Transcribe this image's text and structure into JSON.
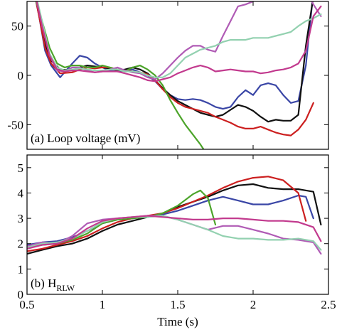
{
  "chart_data": [
    {
      "type": "line",
      "panel": "a",
      "label_prefix": "(a) Loop voltage (mV)",
      "xlim": [
        0.5,
        2.5
      ],
      "ylim": [
        -75,
        75
      ],
      "yticks": [
        -50,
        0,
        50
      ],
      "grid": false,
      "series": [
        {
          "color": "#3a46a6",
          "x": [
            0.5,
            0.58,
            0.62,
            0.66,
            0.72,
            0.8,
            0.85,
            0.9,
            0.95,
            1.0,
            1.05,
            1.1,
            1.15,
            1.2,
            1.25,
            1.3,
            1.35,
            1.4,
            1.45,
            1.5,
            1.55,
            1.6,
            1.65,
            1.7,
            1.75,
            1.8,
            1.85,
            1.9,
            1.95,
            2.0,
            2.05,
            2.1,
            2.15,
            2.2,
            2.25,
            2.3,
            2.35,
            2.4
          ],
          "y": [
            120,
            60,
            25,
            10,
            -2,
            12,
            20,
            18,
            12,
            8,
            5,
            4,
            5,
            6,
            3,
            0,
            -6,
            -14,
            -20,
            -24,
            -25,
            -24,
            -25,
            -28,
            -32,
            -34,
            -32,
            -22,
            -15,
            -20,
            -10,
            -8,
            -10,
            -20,
            -28,
            -26,
            10,
            85
          ]
        },
        {
          "color": "#111111",
          "x": [
            0.5,
            0.58,
            0.62,
            0.66,
            0.72,
            0.8,
            0.85,
            0.9,
            0.95,
            1.0,
            1.05,
            1.1,
            1.15,
            1.2,
            1.25,
            1.3,
            1.35,
            1.4,
            1.45,
            1.5,
            1.55,
            1.6,
            1.65,
            1.7,
            1.75,
            1.8,
            1.85,
            1.9,
            1.95,
            2.0,
            2.05,
            2.1,
            2.15,
            2.2,
            2.25,
            2.3,
            2.35,
            2.4
          ],
          "y": [
            120,
            65,
            32,
            15,
            6,
            5,
            8,
            10,
            9,
            8,
            7,
            5,
            6,
            8,
            6,
            2,
            -5,
            -13,
            -20,
            -26,
            -30,
            -34,
            -38,
            -40,
            -42,
            -40,
            -35,
            -30,
            -32,
            -36,
            -42,
            -47,
            -45,
            -46,
            -46,
            -40,
            30,
            80
          ]
        },
        {
          "color": "#cc1f1f",
          "x": [
            0.5,
            0.58,
            0.62,
            0.66,
            0.72,
            0.8,
            0.85,
            0.9,
            0.95,
            1.0,
            1.05,
            1.1,
            1.15,
            1.2,
            1.25,
            1.3,
            1.35,
            1.4,
            1.45,
            1.5,
            1.55,
            1.6,
            1.65,
            1.7,
            1.75,
            1.8,
            1.85,
            1.9,
            1.95,
            2.0,
            2.05,
            2.1,
            2.15,
            2.2,
            2.25,
            2.3,
            2.35,
            2.4
          ],
          "y": [
            120,
            60,
            28,
            12,
            2,
            3,
            6,
            8,
            7,
            8,
            8,
            6,
            5,
            4,
            3,
            1,
            -5,
            -14,
            -22,
            -28,
            -32,
            -34,
            -36,
            -38,
            -42,
            -45,
            -48,
            -52,
            -54,
            -54,
            -52,
            -55,
            -58,
            -60,
            -61,
            -55,
            -45,
            -28
          ]
        },
        {
          "color": "#4ca42a",
          "x": [
            0.5,
            0.55,
            0.6,
            0.65,
            0.7,
            0.75,
            0.8,
            0.85,
            0.9,
            0.95,
            1.0,
            1.05,
            1.1,
            1.15,
            1.2,
            1.25,
            1.3,
            1.35,
            1.4,
            1.45,
            1.5,
            1.55,
            1.6,
            1.65,
            1.68
          ],
          "y": [
            120,
            80,
            55,
            28,
            12,
            8,
            10,
            10,
            8,
            8,
            10,
            8,
            6,
            4,
            8,
            10,
            6,
            0,
            -10,
            -25,
            -38,
            -50,
            -60,
            -70,
            -77
          ]
        },
        {
          "color": "#b05bb5",
          "x": [
            0.5,
            0.6,
            0.65,
            0.7,
            0.75,
            0.8,
            0.85,
            0.9,
            0.95,
            1.0,
            1.05,
            1.1,
            1.15,
            1.2,
            1.25,
            1.3,
            1.35,
            1.4,
            1.45,
            1.5,
            1.55,
            1.6,
            1.65,
            1.7,
            1.75,
            1.8,
            1.85,
            1.9,
            1.95,
            2.0,
            2.05,
            2.1,
            2.15,
            2.2,
            2.25,
            2.3,
            2.35,
            2.4,
            2.45
          ],
          "y": [
            120,
            50,
            20,
            5,
            4,
            8,
            8,
            5,
            3,
            4,
            6,
            8,
            5,
            3,
            2,
            -2,
            -4,
            2,
            10,
            18,
            25,
            30,
            30,
            26,
            24,
            40,
            55,
            70,
            72,
            75,
            80,
            85,
            80,
            82,
            85,
            88,
            86,
            72,
            60
          ]
        },
        {
          "color": "#93d1b0",
          "x": [
            0.5,
            0.6,
            0.65,
            0.7,
            0.75,
            0.8,
            0.85,
            0.9,
            0.95,
            1.0,
            1.05,
            1.1,
            1.15,
            1.2,
            1.25,
            1.3,
            1.35,
            1.4,
            1.45,
            1.5,
            1.55,
            1.6,
            1.65,
            1.7,
            1.75,
            1.8,
            1.85,
            1.9,
            1.95,
            2.0,
            2.05,
            2.1,
            2.15,
            2.2,
            2.25,
            2.3,
            2.35,
            2.4,
            2.45
          ],
          "y": [
            120,
            55,
            22,
            8,
            5,
            6,
            7,
            6,
            5,
            5,
            6,
            6,
            4,
            4,
            3,
            0,
            -2,
            -2,
            2,
            10,
            18,
            22,
            26,
            28,
            30,
            34,
            36,
            36,
            36,
            38,
            38,
            38,
            40,
            42,
            44,
            50,
            55,
            58,
            62
          ]
        },
        {
          "color": "#c23a8e",
          "x": [
            0.5,
            0.6,
            0.65,
            0.7,
            0.75,
            0.8,
            0.85,
            0.9,
            0.95,
            1.0,
            1.05,
            1.1,
            1.15,
            1.2,
            1.25,
            1.3,
            1.35,
            1.4,
            1.45,
            1.5,
            1.55,
            1.6,
            1.65,
            1.7,
            1.75,
            1.8,
            1.85,
            1.9,
            1.95,
            2.0,
            2.05,
            2.1,
            2.15,
            2.2,
            2.25,
            2.3,
            2.35,
            2.4,
            2.45
          ],
          "y": [
            120,
            50,
            20,
            6,
            4,
            5,
            5,
            4,
            3,
            4,
            4,
            4,
            2,
            0,
            -2,
            -5,
            -6,
            -4,
            -2,
            2,
            5,
            8,
            10,
            8,
            4,
            5,
            6,
            5,
            4,
            4,
            2,
            3,
            5,
            6,
            8,
            12,
            25,
            60,
            70
          ]
        }
      ]
    },
    {
      "type": "line",
      "panel": "b",
      "label_prefix": "(b) H",
      "label_subscript": "RLW",
      "xlim": [
        0.5,
        2.5
      ],
      "ylim": [
        0,
        5.5
      ],
      "yticks": [
        0,
        1,
        2,
        3,
        4,
        5
      ],
      "xticks": [
        0.5,
        1,
        1.5,
        2,
        2.5
      ],
      "xticklabels": [
        "0.5",
        "1",
        "1.5",
        "2",
        "2.5"
      ],
      "xlabel": "Time (s)",
      "grid": false,
      "series": [
        {
          "color": "#3a46a6",
          "x": [
            0.5,
            0.6,
            0.7,
            0.8,
            0.9,
            1.0,
            1.1,
            1.2,
            1.3,
            1.4,
            1.5,
            1.6,
            1.7,
            1.8,
            1.9,
            2.0,
            2.1,
            2.2,
            2.3,
            2.35,
            2.4
          ],
          "y": [
            1.95,
            2.05,
            2.1,
            2.25,
            2.5,
            2.8,
            2.95,
            3.0,
            3.05,
            3.15,
            3.3,
            3.5,
            3.7,
            3.85,
            3.7,
            3.55,
            3.55,
            3.7,
            3.9,
            3.85,
            3.0
          ]
        },
        {
          "color": "#111111",
          "x": [
            0.5,
            0.6,
            0.7,
            0.8,
            0.9,
            1.0,
            1.1,
            1.2,
            1.3,
            1.4,
            1.5,
            1.6,
            1.7,
            1.8,
            1.9,
            2.0,
            2.1,
            2.2,
            2.3,
            2.4,
            2.45
          ],
          "y": [
            1.6,
            1.75,
            1.9,
            2.0,
            2.2,
            2.5,
            2.75,
            2.9,
            3.05,
            3.2,
            3.45,
            3.65,
            3.85,
            4.1,
            4.3,
            4.35,
            4.2,
            4.15,
            4.15,
            4.05,
            2.75
          ]
        },
        {
          "color": "#cc1f1f",
          "x": [
            0.5,
            0.6,
            0.7,
            0.8,
            0.9,
            1.0,
            1.1,
            1.2,
            1.3,
            1.4,
            1.5,
            1.6,
            1.7,
            1.8,
            1.9,
            2.0,
            2.1,
            2.2,
            2.3,
            2.35
          ],
          "y": [
            1.7,
            1.8,
            1.95,
            2.1,
            2.3,
            2.6,
            2.85,
            3.0,
            3.1,
            3.2,
            3.4,
            3.65,
            3.9,
            4.2,
            4.45,
            4.6,
            4.65,
            4.5,
            4.0,
            2.9
          ]
        },
        {
          "color": "#4ca42a",
          "x": [
            0.5,
            0.6,
            0.7,
            0.8,
            0.9,
            1.0,
            1.1,
            1.2,
            1.3,
            1.4,
            1.5,
            1.6,
            1.65,
            1.7,
            1.75
          ],
          "y": [
            1.85,
            1.95,
            2.0,
            2.15,
            2.4,
            2.8,
            2.95,
            3.0,
            3.05,
            3.2,
            3.5,
            3.95,
            4.1,
            3.8,
            2.75
          ]
        },
        {
          "color": "#b05bb5",
          "x": [
            0.5,
            0.6,
            0.7,
            0.8,
            0.9,
            1.0,
            1.1,
            1.2,
            1.3,
            1.4,
            1.5,
            1.6,
            1.7,
            1.8,
            1.9,
            2.0,
            2.1,
            2.2,
            2.3,
            2.4,
            2.45
          ],
          "y": [
            1.9,
            2.05,
            2.0,
            2.3,
            2.8,
            2.95,
            3.0,
            3.05,
            3.1,
            3.1,
            2.95,
            2.75,
            2.55,
            2.7,
            2.7,
            2.55,
            2.4,
            2.2,
            2.15,
            2.05,
            1.6
          ]
        },
        {
          "color": "#93d1b0",
          "x": [
            0.5,
            0.6,
            0.7,
            0.8,
            0.9,
            1.0,
            1.1,
            1.2,
            1.3,
            1.4,
            1.5,
            1.6,
            1.7,
            1.8,
            1.9,
            2.0,
            2.1,
            2.2,
            2.3,
            2.4,
            2.45
          ],
          "y": [
            1.85,
            2.0,
            2.05,
            2.2,
            2.5,
            2.85,
            3.0,
            3.05,
            3.05,
            3.1,
            2.95,
            2.75,
            2.55,
            2.3,
            2.2,
            2.2,
            2.15,
            2.15,
            2.2,
            2.1,
            1.75
          ]
        },
        {
          "color": "#c23a8e",
          "x": [
            0.5,
            0.6,
            0.7,
            0.8,
            0.9,
            1.0,
            1.1,
            1.2,
            1.3,
            1.4,
            1.5,
            1.6,
            1.7,
            1.8,
            1.9,
            2.0,
            2.1,
            2.2,
            2.3,
            2.4,
            2.45
          ],
          "y": [
            1.8,
            1.95,
            2.0,
            2.2,
            2.6,
            2.9,
            3.0,
            3.05,
            3.1,
            3.05,
            3.0,
            2.95,
            2.95,
            3.0,
            3.0,
            2.95,
            2.9,
            2.9,
            2.85,
            2.65,
            2.1
          ]
        }
      ]
    }
  ]
}
